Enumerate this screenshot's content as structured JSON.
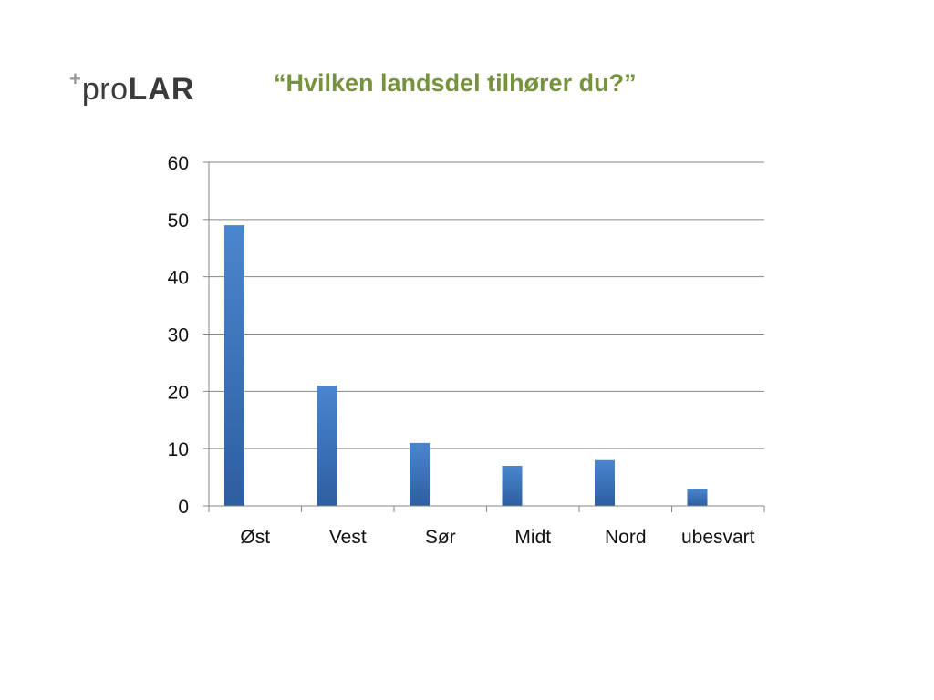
{
  "logo": {
    "plus": "+",
    "pro": "pro",
    "lar": "LAR"
  },
  "slide_title": "“Hvilken landsdel tilhører du?”",
  "colors": {
    "title": "#76923c",
    "bar_top": "#4a86cf",
    "bar_bottom": "#2d5ea0",
    "grid": "#868686"
  },
  "chart_data": {
    "type": "bar",
    "categories": [
      "Øst",
      "Vest",
      "Sør",
      "Midt",
      "Nord",
      "ubesvart"
    ],
    "values": [
      49,
      21,
      11,
      7,
      8,
      3
    ],
    "ylim": [
      0,
      60
    ],
    "yticks": [
      0,
      10,
      20,
      30,
      40,
      50,
      60
    ],
    "grid": true,
    "legend": false
  }
}
